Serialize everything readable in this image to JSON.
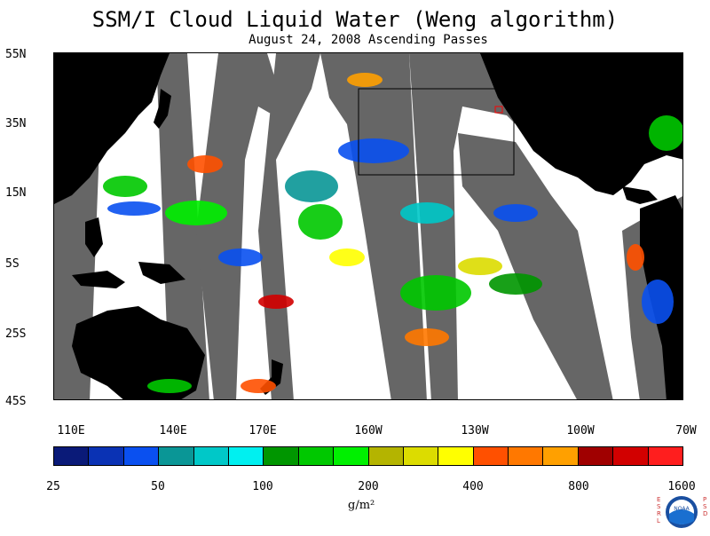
{
  "title": "SSM/I Cloud Liquid Water (Weng algorithm)",
  "subtitle": "August 24, 2008  Ascending Passes",
  "map": {
    "lat_labels": [
      "55N",
      "35N",
      "15N",
      "5S",
      "25S",
      "45S"
    ],
    "lon_labels": [
      "110E",
      "140E",
      "170E",
      "160W",
      "130W",
      "100W",
      "70W"
    ],
    "colors": {
      "land": "#000000",
      "no_data": "#666666",
      "clear": "#ffffff"
    }
  },
  "colorbar": {
    "colors": [
      "#0a1a78",
      "#0a32b4",
      "#0a50f0",
      "#0a9696",
      "#00c8c8",
      "#00f0f0",
      "#009600",
      "#00c800",
      "#00f000",
      "#b4b400",
      "#dcdc00",
      "#ffff00",
      "#ff5000",
      "#ff7800",
      "#ffa000",
      "#a00000",
      "#d20000",
      "#ff1e1e"
    ],
    "tick_labels": [
      "25",
      "50",
      "100",
      "200",
      "400",
      "800",
      "1600"
    ],
    "unit": "g/m²"
  },
  "logo": {
    "left_text": "ESRL",
    "right_text": "PSD",
    "center_text": "NOAA",
    "icon": "noaa-logo-icon"
  }
}
